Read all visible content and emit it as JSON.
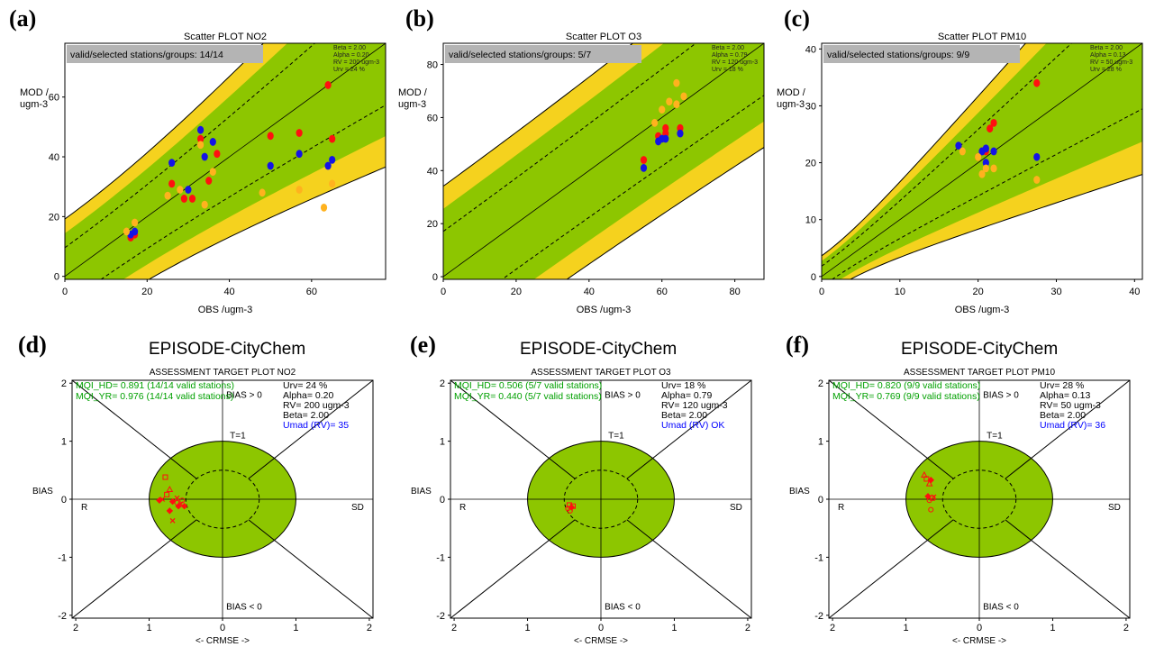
{
  "panel_labels": [
    "(a)",
    "(b)",
    "(c)",
    "(d)",
    "(e)",
    "(f)"
  ],
  "colors": {
    "green": "#8dc600",
    "yellow": "#f5d21e",
    "red": "#ff1010",
    "blue": "#1414e6",
    "orange": "#ffb21e",
    "legend_box": "#b4b4b4",
    "mqi_text": "#00a000",
    "umad_text": "#0000ff"
  },
  "chart_data": [
    {
      "type": "scatter",
      "title": "Scatter PLOT  NO2",
      "xlabel": "OBS /ugm-3",
      "ylabel": [
        "MOD /",
        "ugm-3"
      ],
      "xlim": [
        0,
        78
      ],
      "ylim": [
        -1,
        78
      ],
      "xticks": [
        0,
        20,
        40,
        60
      ],
      "yticks": [
        0,
        20,
        40,
        60
      ],
      "band": {
        "RV": 200,
        "U": 0.24,
        "alpha": 0.2,
        "beta": 2
      },
      "legend": "valid/selected stations/groups: 14/14",
      "params": [
        "Beta = 2.00",
        "Alpha = 0.20",
        "RV = 200 ugm-3",
        "Urv = 24 %"
      ],
      "series": [
        {
          "color": "red",
          "points": [
            [
              64,
              64
            ],
            [
              37,
              41
            ],
            [
              35,
              32
            ],
            [
              33,
              46
            ],
            [
              29,
              26
            ],
            [
              31,
              26
            ],
            [
              26,
              31
            ],
            [
              50,
              47
            ],
            [
              57,
              48
            ],
            [
              65,
              46
            ],
            [
              16,
              13
            ],
            [
              17,
              14
            ]
          ]
        },
        {
          "color": "blue",
          "points": [
            [
              33,
              49
            ],
            [
              36,
              45
            ],
            [
              34,
              40
            ],
            [
              26,
              38
            ],
            [
              30,
              29
            ],
            [
              50,
              37
            ],
            [
              57,
              41
            ],
            [
              64,
              37
            ],
            [
              65,
              39
            ],
            [
              17,
              15
            ],
            [
              16,
              14
            ]
          ]
        },
        {
          "color": "orange",
          "points": [
            [
              25,
              27
            ],
            [
              28,
              29
            ],
            [
              34,
              24
            ],
            [
              36,
              35
            ],
            [
              48,
              28
            ],
            [
              57,
              29
            ],
            [
              65,
              31
            ],
            [
              63,
              23
            ],
            [
              17,
              18
            ],
            [
              15,
              15
            ],
            [
              33,
              44
            ]
          ]
        }
      ]
    },
    {
      "type": "scatter",
      "title": "Scatter PLOT  O3",
      "xlabel": "OBS /ugm-3",
      "ylabel": [
        "MOD /",
        "ugm-3"
      ],
      "xlim": [
        0,
        88
      ],
      "ylim": [
        -1,
        88
      ],
      "xticks": [
        0,
        20,
        40,
        60,
        80
      ],
      "yticks": [
        0,
        20,
        40,
        60,
        80
      ],
      "band": {
        "RV": 120,
        "U": 0.18,
        "alpha": 0.79,
        "beta": 2
      },
      "legend": "valid/selected stations/groups: 5/7",
      "params": [
        "Beta = 2.00",
        "Alpha = 0.79",
        "RV = 120 ugm-3",
        "Urv = 18 %"
      ],
      "series": [
        {
          "color": "red",
          "points": [
            [
              55,
              44
            ],
            [
              61,
              56
            ],
            [
              65,
              56
            ],
            [
              59,
              53
            ],
            [
              61,
              54
            ]
          ]
        },
        {
          "color": "blue",
          "points": [
            [
              55,
              41
            ],
            [
              59,
              51
            ],
            [
              61,
              52
            ],
            [
              65,
              54
            ],
            [
              60,
              52
            ]
          ]
        },
        {
          "color": "orange",
          "points": [
            [
              64,
              73
            ],
            [
              66,
              68
            ],
            [
              62,
              66
            ],
            [
              58,
              58
            ],
            [
              60,
              63
            ],
            [
              64,
              65
            ]
          ]
        }
      ]
    },
    {
      "type": "scatter",
      "title": "Scatter PLOT  PM10",
      "xlabel": "OBS /ugm-3",
      "ylabel": [
        "MOD /",
        "ugm-3"
      ],
      "xlim": [
        0,
        41
      ],
      "ylim": [
        -0.5,
        41
      ],
      "xticks": [
        0,
        10,
        20,
        30,
        40
      ],
      "yticks": [
        0,
        10,
        20,
        30,
        40
      ],
      "band": {
        "RV": 50,
        "U": 0.28,
        "alpha": 0.13,
        "beta": 2
      },
      "legend": "valid/selected stations/groups: 9/9",
      "params": [
        "Beta = 2.00",
        "Alpha = 0.13",
        "RV = 50 ugm-3",
        "Urv = 28 %"
      ],
      "series": [
        {
          "color": "red",
          "points": [
            [
              27.5,
              34
            ],
            [
              22,
              27
            ],
            [
              21.5,
              26
            ],
            [
              20.5,
              22
            ],
            [
              20,
              21
            ],
            [
              21,
              22
            ]
          ]
        },
        {
          "color": "blue",
          "points": [
            [
              17.5,
              23
            ],
            [
              20.5,
              22
            ],
            [
              21,
              22.5
            ],
            [
              22,
              22
            ],
            [
              27.5,
              21
            ],
            [
              21,
              20
            ]
          ]
        },
        {
          "color": "orange",
          "points": [
            [
              18,
              22
            ],
            [
              20,
              21
            ],
            [
              21,
              19
            ],
            [
              22,
              19
            ],
            [
              27.5,
              17
            ],
            [
              20.5,
              18
            ]
          ]
        }
      ]
    },
    {
      "type": "target",
      "title": "ASSESSMENT TARGET PLOT  NO2",
      "suptitle": "EPISODE-CityChem",
      "xlabel": "<- CRMSE ->",
      "ylabel": "BIAS",
      "lim": 2.05,
      "xticks": [
        "2",
        "1",
        "0",
        "1",
        "2"
      ],
      "yticks": [
        "2",
        "1",
        "0",
        "-1",
        "-2"
      ],
      "labels": {
        "bias_pos": "BIAS > 0",
        "bias_neg": "BIAS < 0",
        "t1": "T=1",
        "r": "R",
        "sd": "SD"
      },
      "mqi": [
        "MQI_HD= 0.891 (14/14 valid stations)",
        "MQI_YR= 0.976 (14/14 valid stations)"
      ],
      "info": [
        "Urv= 24 %",
        "Alpha= 0.20",
        "RV= 200 ugm-3",
        "Beta= 2.00"
      ],
      "umad": "Umad (RV)= 35",
      "points": [
        [
          -0.78,
          0.38,
          "s"
        ],
        [
          -0.72,
          0.17,
          "t"
        ],
        [
          -0.62,
          0.02,
          "x"
        ],
        [
          -0.82,
          0.0,
          "x"
        ],
        [
          -0.86,
          -0.02,
          "d"
        ],
        [
          -0.76,
          0.08,
          "s"
        ],
        [
          -0.68,
          -0.04,
          "d"
        ],
        [
          -0.57,
          -0.08,
          "x"
        ],
        [
          -0.52,
          -0.12,
          "d"
        ],
        [
          -0.72,
          -0.2,
          "d"
        ],
        [
          -0.68,
          -0.37,
          "x"
        ],
        [
          -0.6,
          -0.12,
          "d"
        ],
        [
          -0.55,
          -0.02,
          "c"
        ],
        [
          -0.62,
          -0.06,
          "c"
        ]
      ]
    },
    {
      "type": "target",
      "title": "ASSESSMENT TARGET PLOT  O3",
      "suptitle": "EPISODE-CityChem",
      "xlabel": "<- CRMSE ->",
      "ylabel": "BIAS",
      "lim": 2.05,
      "xticks": [
        "2",
        "1",
        "0",
        "1",
        "2"
      ],
      "yticks": [
        "2",
        "1",
        "0",
        "-1",
        "-2"
      ],
      "labels": {
        "bias_pos": "BIAS > 0",
        "bias_neg": "BIAS < 0",
        "t1": "T=1",
        "r": "R",
        "sd": "SD"
      },
      "mqi": [
        "MQI_HD= 0.506 (5/7 valid stations)",
        "MQI_YR= 0.440 (5/7 valid stations)"
      ],
      "info": [
        "Urv= 18 %",
        "Alpha= 0.79",
        "RV= 120 ugm-3",
        "Beta= 2.00"
      ],
      "umad": "Umad (RV) OK",
      "points": [
        [
          -0.43,
          -0.1,
          "s"
        ],
        [
          -0.4,
          -0.14,
          "d"
        ],
        [
          -0.45,
          -0.16,
          "c"
        ],
        [
          -0.42,
          -0.2,
          "c"
        ],
        [
          -0.38,
          -0.12,
          "s"
        ]
      ]
    },
    {
      "type": "target",
      "title": "ASSESSMENT TARGET PLOT  PM10",
      "suptitle": "EPISODE-CityChem",
      "xlabel": "<- CRMSE ->",
      "ylabel": "BIAS",
      "lim": 2.05,
      "xticks": [
        "2",
        "1",
        "0",
        "1",
        "2"
      ],
      "yticks": [
        "2",
        "1",
        "0",
        "-1",
        "-2"
      ],
      "labels": {
        "bias_pos": "BIAS > 0",
        "bias_neg": "BIAS < 0",
        "t1": "T=1",
        "r": "R",
        "sd": "SD"
      },
      "mqi": [
        "MQI_HD= 0.820 (9/9 valid stations)",
        "MQI_YR= 0.769 (9/9 valid stations)"
      ],
      "info": [
        "Urv= 28 %",
        "Alpha= 0.13",
        "RV= 50 ugm-3",
        "Beta= 2.00"
      ],
      "umad": "Umad (RV)= 36",
      "points": [
        [
          -0.72,
          0.35,
          "s"
        ],
        [
          -0.68,
          0.27,
          "t"
        ],
        [
          -0.66,
          0.33,
          "d"
        ],
        [
          -0.7,
          0.05,
          "d"
        ],
        [
          -0.64,
          0.02,
          "s"
        ],
        [
          -0.68,
          -0.02,
          "c"
        ],
        [
          -0.62,
          0.04,
          "x"
        ],
        [
          -0.66,
          -0.18,
          "c"
        ],
        [
          -0.75,
          0.42,
          "t"
        ]
      ]
    }
  ]
}
